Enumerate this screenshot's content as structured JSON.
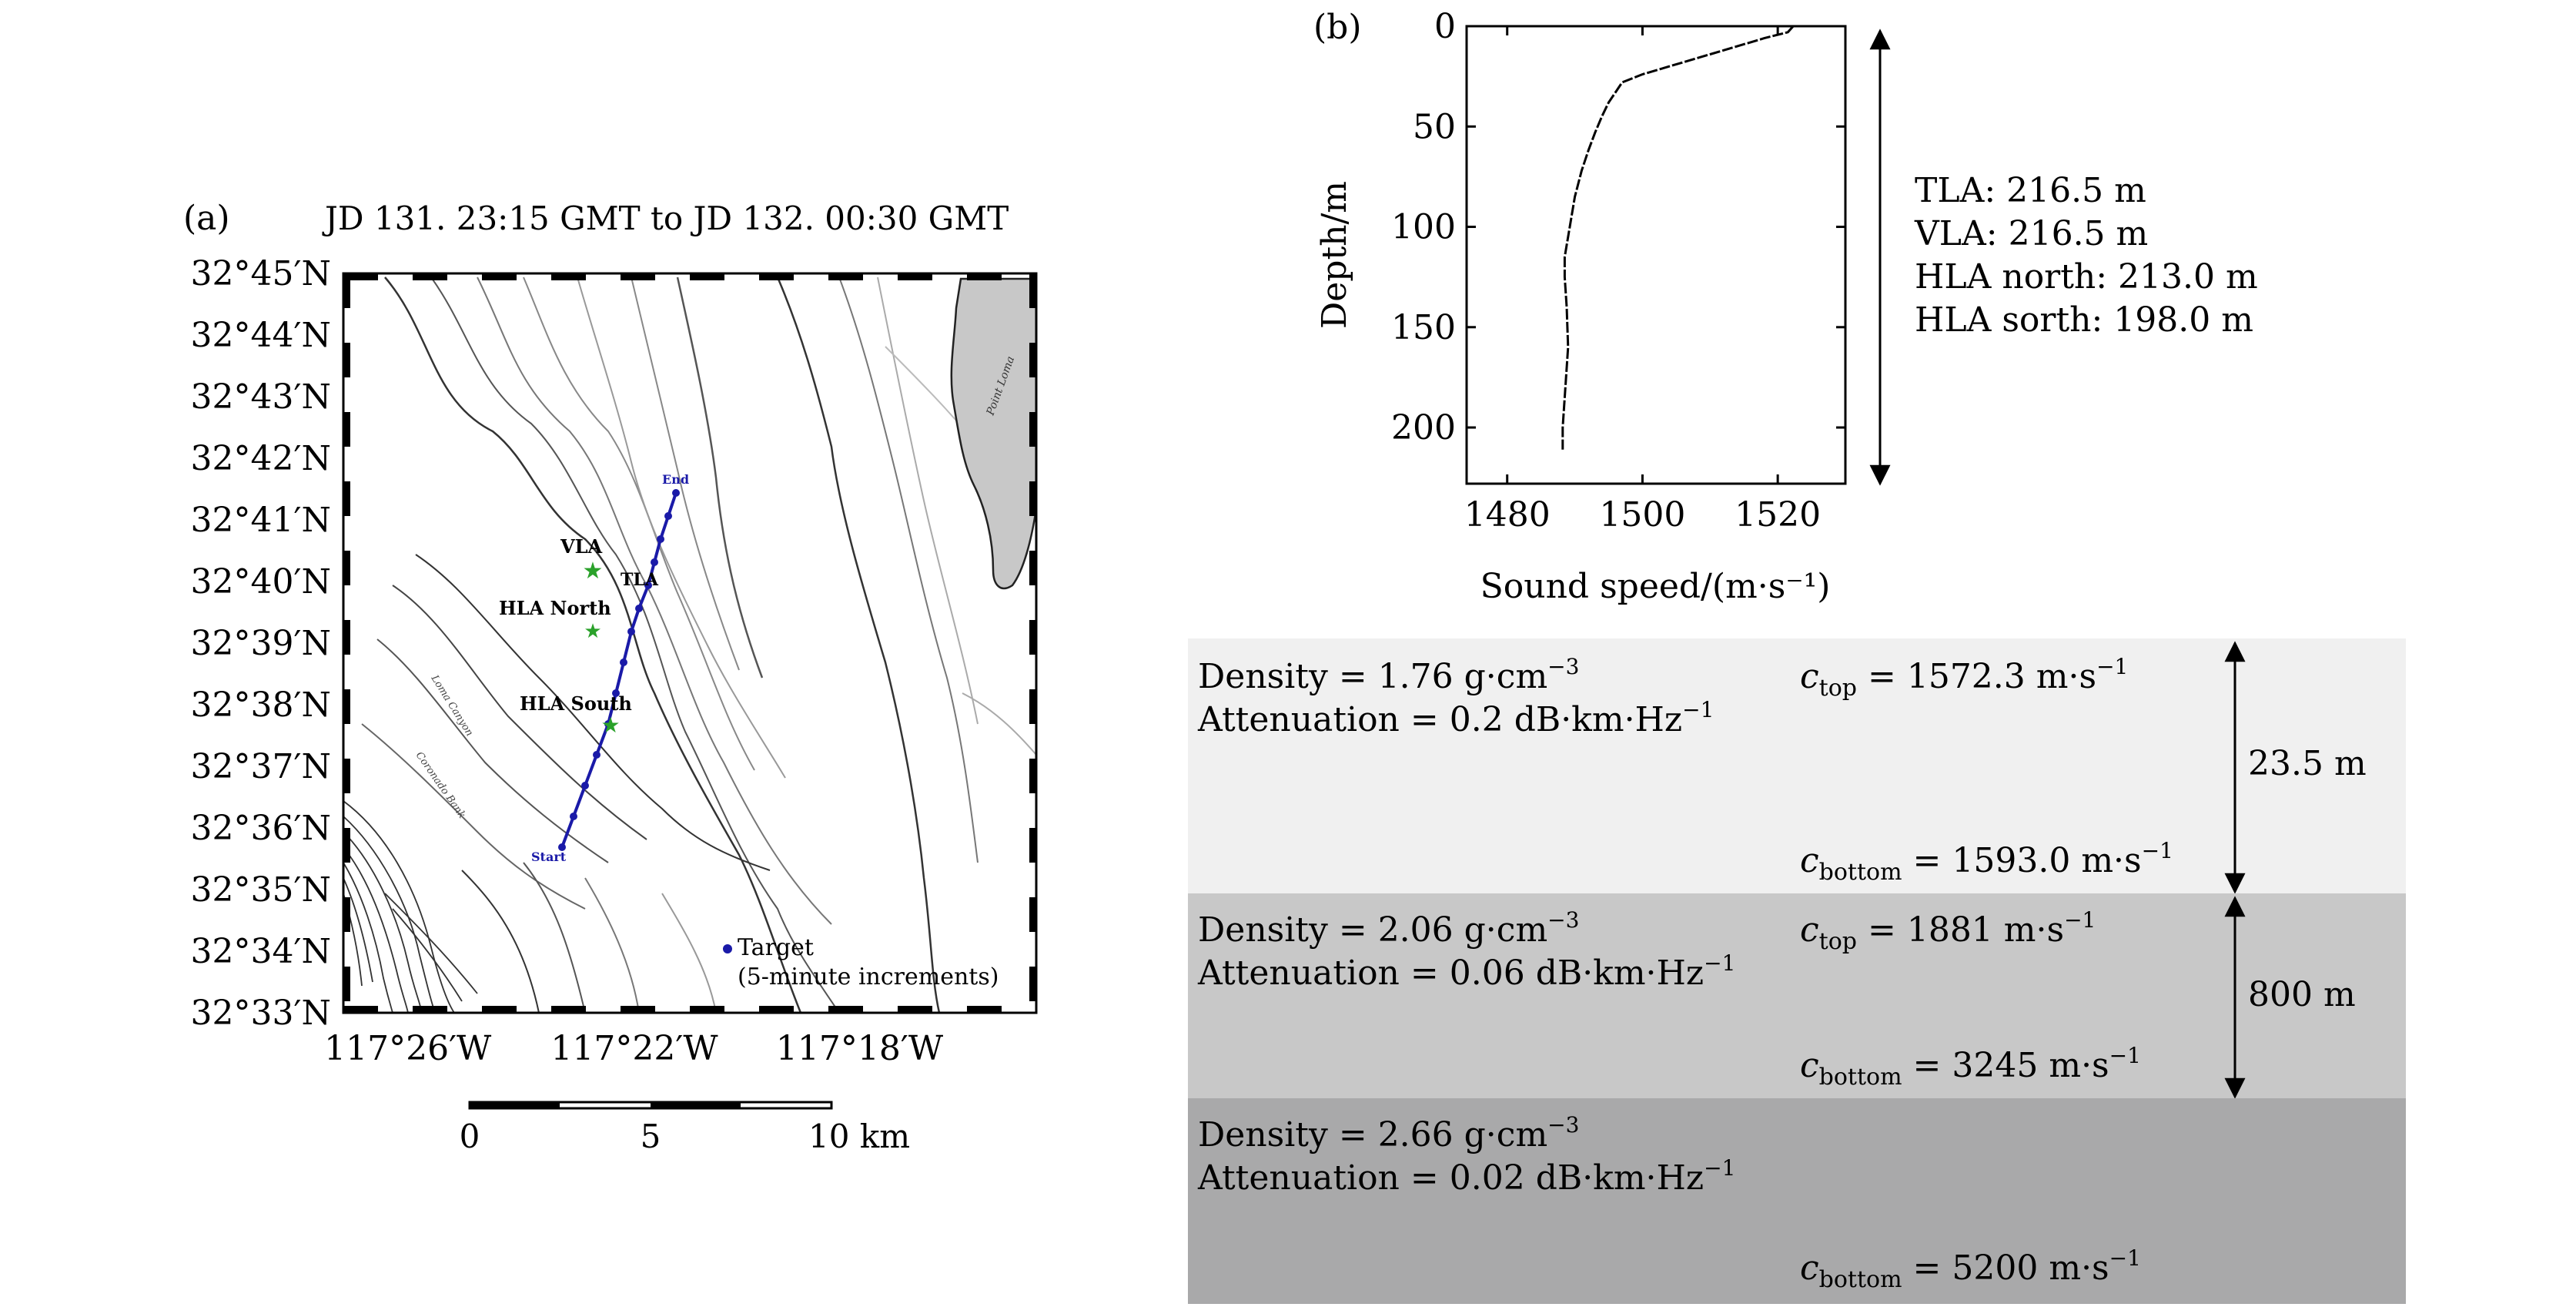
{
  "panel_a": {
    "label": "(a)",
    "title": "JD 131. 23:15 GMT to JD 132. 00:30 GMT",
    "lat_labels": [
      "32°45′N",
      "32°44′N",
      "32°43′N",
      "32°42′N",
      "32°41′N",
      "32°40′N",
      "32°39′N",
      "32°38′N",
      "32°37′N",
      "32°36′N",
      "32°35′N",
      "32°34′N",
      "32°33′N"
    ],
    "lon_labels": [
      "117°26′W",
      "117°22′W",
      "117°18′W"
    ],
    "map_labels": {
      "vla": "VLA",
      "hla_north": "HLA North",
      "hla_south": "HLA South",
      "tla": "TLA",
      "end": "End",
      "start": "Start",
      "point_loma": "Point Loma",
      "loma_canyon": "Loma Canyon",
      "coronado_bank": "Coronado Bank"
    },
    "legend": {
      "line1": "Target",
      "line2": "(5-minute increments)"
    },
    "scalebar": {
      "ticks": [
        "0",
        "5",
        "10 km"
      ]
    },
    "colors": {
      "track": "#1a1aa8",
      "array": "#2aa12a",
      "land": "#c8c8c8"
    }
  },
  "panel_b": {
    "label": "(b)",
    "depths_info": [
      "TLA: 216.5 m",
      "VLA: 216.5 m",
      "HLA north: 213.0 m",
      "HLA sorth: 198.0 m"
    ]
  },
  "chart_data": {
    "type": "line",
    "xlabel": "Sound speed/(m·s⁻¹)",
    "ylabel": "Depth/m",
    "xlim": [
      1474,
      1530
    ],
    "ylim": [
      0,
      228
    ],
    "y_inverted": true,
    "x_ticks": [
      1480,
      1500,
      1520
    ],
    "y_ticks": [
      0,
      50,
      100,
      150,
      200
    ],
    "series": [
      {
        "x": [
          1522.3,
          1521.5,
          1518,
          1514,
          1510,
          1507,
          1504,
          1500,
          1497,
          1496,
          1495,
          1494,
          1493,
          1492,
          1491,
          1490,
          1489.5,
          1489,
          1488.5,
          1488.5,
          1488.8,
          1489,
          1488.6,
          1488.2,
          1488.2
        ],
        "y": [
          0,
          3,
          6,
          10,
          14,
          17,
          20,
          24,
          28,
          33,
          38,
          45,
          53,
          62,
          72,
          85,
          95,
          105,
          115,
          125,
          140,
          160,
          180,
          200,
          211
        ]
      }
    ]
  },
  "layers": [
    {
      "density_label": "Density = ",
      "density": "1.76 g·cm",
      "density_sup": "−3",
      "attenuation_label": "Attenuation = ",
      "attenuation": "0.2 dB·km·Hz",
      "attenuation_sup": "−1",
      "c_top_sub": "top",
      "c_top": " = 1572.3 m·s",
      "c_bottom_sub": "bottom",
      "c_bottom": " = 1593.0 m·s",
      "unit_sup": "−1",
      "thickness": "23.5 m",
      "color": "#f0f0f0"
    },
    {
      "density_label": "Density = ",
      "density": "2.06 g·cm",
      "density_sup": "−3",
      "attenuation_label": "Attenuation = ",
      "attenuation": "0.06 dB·km·Hz",
      "attenuation_sup": "−1",
      "c_top_sub": "top",
      "c_top": " = 1881 m·s",
      "c_bottom_sub": "bottom",
      "c_bottom": " = 3245 m·s",
      "unit_sup": "−1",
      "thickness": "800 m",
      "color": "#c8c8c8"
    },
    {
      "density_label": "Density = ",
      "density": "2.66 g·cm",
      "density_sup": "−3",
      "attenuation_label": "Attenuation = ",
      "attenuation": "0.02 dB·km·Hz",
      "attenuation_sup": "−1",
      "c_bottom_sub": "bottom",
      "c_bottom": " = 5200 m·s",
      "unit_sup": "−1",
      "color": "#a9a9aa"
    }
  ]
}
